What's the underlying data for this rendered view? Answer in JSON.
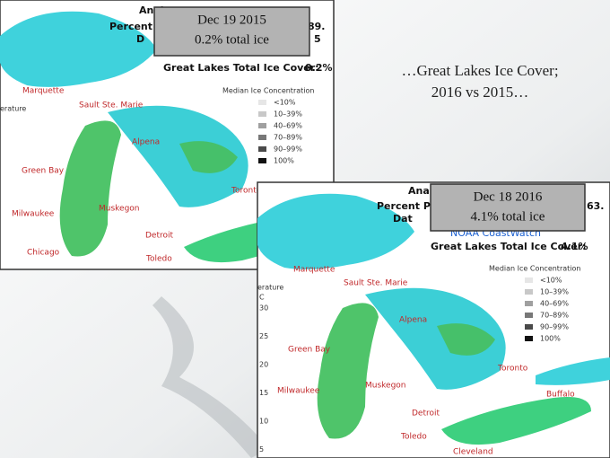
{
  "title": [
    "…Great Lakes Ice Cover;",
    "2016 vs 2015…"
  ],
  "maps": [
    {
      "date": "Dec 19 2015",
      "ice_total": "0.2% total ice",
      "header_left": [
        "Anal",
        "Percent P",
        "D"
      ],
      "header_right": [
        "89.",
        "5"
      ],
      "cover_label": "Great Lakes Total Ice Cover:",
      "cover_value": "0.2%",
      "legend_title": "Median Ice Concentration",
      "legend": [
        "<10%",
        "10–39%",
        "40–69%",
        "70–89%",
        "90–99%",
        "100%"
      ],
      "side_label": "erature",
      "cities": [
        "Marquette",
        "Sault Ste. Marie",
        "Alpena",
        "Green Bay",
        "Milwaukee",
        "Muskegon",
        "Chicago",
        "Detroit",
        "Toledo",
        "Toronto"
      ]
    },
    {
      "date": "Dec 18 2016",
      "ice_total": "4.1% total ice",
      "header_left": [
        "Anal",
        "Percent Pix",
        "Dat"
      ],
      "header_right": [
        "63."
      ],
      "source": "NOAA CoastWatch",
      "cover_label": "Great Lakes Total Ice Cover:",
      "cover_value": "4.1%",
      "legend_title": "Median Ice Concentration",
      "legend": [
        "<10%",
        "10–39%",
        "40–69%",
        "70–89%",
        "90–99%",
        "100%"
      ],
      "side_label": "erature",
      "scale_unit": "C",
      "scale": [
        30,
        25,
        20,
        15,
        10,
        5
      ],
      "cities": [
        "Marquette",
        "Sault Ste. Marie",
        "Alpena",
        "Green Bay",
        "Toronto",
        "Milwaukee",
        "Muskegon",
        "Buffalo",
        "Detroit",
        "Toledo",
        "Cleveland"
      ]
    }
  ]
}
